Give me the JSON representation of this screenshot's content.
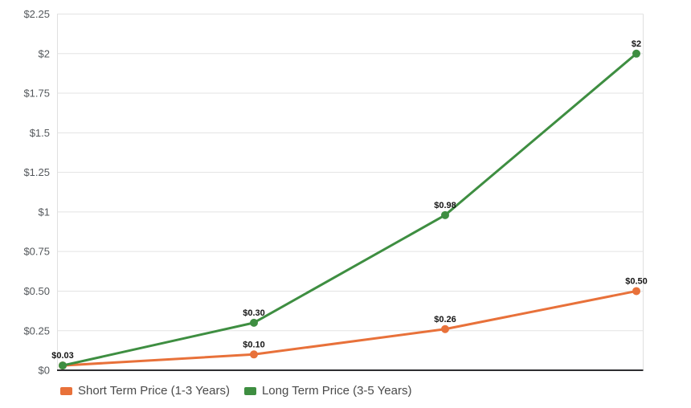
{
  "chart_data": {
    "type": "line",
    "title": "",
    "xlabel": "",
    "ylabel": "",
    "x": [
      0,
      1,
      2,
      3
    ],
    "x_tick_labels": [
      "",
      "",
      "",
      ""
    ],
    "y_axis": {
      "min": 0,
      "max": 2.25,
      "tick_values": [
        0,
        0.25,
        0.5,
        0.75,
        1,
        1.25,
        1.5,
        1.75,
        2,
        2.25
      ],
      "tick_labels": [
        "$0",
        "$0.25",
        "$0.50",
        "$0.75",
        "$1",
        "$1.25",
        "$1.5",
        "$1.75",
        "$2",
        "$2.25"
      ]
    },
    "series": [
      {
        "name": "Short Term Price (1-3 Years)",
        "color": "#e8713a",
        "values": [
          0.03,
          0.1,
          0.26,
          0.5
        ],
        "point_labels": [
          "",
          "$0.10",
          "$0.26",
          "$0.50"
        ]
      },
      {
        "name": "Long Term Price (3-5 Years)",
        "color": "#3e8e41",
        "values": [
          0.03,
          0.3,
          0.98,
          2.0
        ],
        "point_labels": [
          "$0.03",
          "$0.30",
          "$0.98",
          "$2"
        ]
      }
    ],
    "grid": true,
    "legend_position": "bottom-left",
    "colors": {
      "background": "#ffffff",
      "gridline": "#e3e3e3",
      "plot_border": "#e0e0e0",
      "axis_line": "#2e2e31",
      "tick_label": "#54585c",
      "data_label": "#141414",
      "legend_text": "#4a4a4a"
    }
  }
}
